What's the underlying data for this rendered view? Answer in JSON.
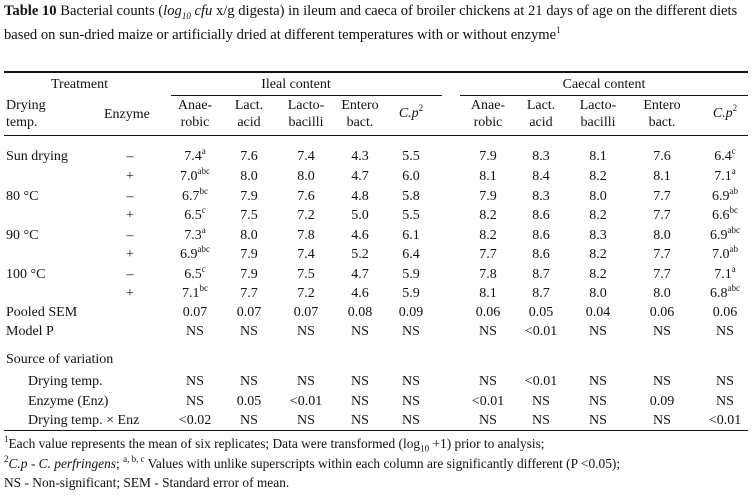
{
  "caption": {
    "label": "Table 10",
    "text_before": " Bacterial counts (",
    "unit_log": "log",
    "unit_sub": "10",
    "unit_cfu": " cfu",
    "text_after": " x/g digesta) in ileum and caeca of broiler chickens at 21 days of age on the different diets based on sun-dried maize or artificially dried at different temperatures with or without enzyme",
    "footnote_mark": "1"
  },
  "headers": {
    "treatment": "Treatment",
    "ileal": "Ileal content",
    "caecal": "Caecal content",
    "drying_line1": "Drying",
    "drying_line2": "temp.",
    "enzyme": "Enzyme",
    "cols": [
      {
        "l1": "Anae-",
        "l2": "robic"
      },
      {
        "l1": "Lact.",
        "l2": "acid"
      },
      {
        "l1": "Lacto-",
        "l2": "bacilli"
      },
      {
        "l1": "Entero",
        "l2": "bact."
      },
      {
        "l1": "C.p",
        "sup": "2"
      }
    ]
  },
  "rows": [
    {
      "temp": "Sun drying",
      "enz": "–",
      "cells": [
        {
          "v": "7.4",
          "s": "a"
        },
        {
          "v": "7.6"
        },
        {
          "v": "7.4"
        },
        {
          "v": "4.3"
        },
        {
          "v": "5.5"
        },
        {
          "v": "7.9"
        },
        {
          "v": "8.3"
        },
        {
          "v": "8.1"
        },
        {
          "v": "7.6"
        },
        {
          "v": "6.4",
          "s": "c"
        }
      ]
    },
    {
      "temp": "",
      "enz": "+",
      "cells": [
        {
          "v": "7.0",
          "s": "abc"
        },
        {
          "v": "8.0"
        },
        {
          "v": "8.0"
        },
        {
          "v": "4.7"
        },
        {
          "v": "6.0"
        },
        {
          "v": "8.1"
        },
        {
          "v": "8.4"
        },
        {
          "v": "8.2"
        },
        {
          "v": "8.1"
        },
        {
          "v": "7.1",
          "s": "a"
        }
      ]
    },
    {
      "temp": "80 °C",
      "enz": "–",
      "cells": [
        {
          "v": "6.7",
          "s": "bc"
        },
        {
          "v": "7.9"
        },
        {
          "v": "7.6"
        },
        {
          "v": "4.8"
        },
        {
          "v": "5.8"
        },
        {
          "v": "7.9"
        },
        {
          "v": "8.3"
        },
        {
          "v": "8.0"
        },
        {
          "v": "7.7"
        },
        {
          "v": "6.9",
          "s": "ab"
        }
      ]
    },
    {
      "temp": "",
      "enz": "+",
      "cells": [
        {
          "v": "6.5",
          "s": "c"
        },
        {
          "v": "7.5"
        },
        {
          "v": "7.2"
        },
        {
          "v": "5.0"
        },
        {
          "v": "5.5"
        },
        {
          "v": "8.2"
        },
        {
          "v": "8.6"
        },
        {
          "v": "8.2"
        },
        {
          "v": "7.7"
        },
        {
          "v": "6.6",
          "s": "bc"
        }
      ]
    },
    {
      "temp": "90 °C",
      "enz": "–",
      "cells": [
        {
          "v": "7.3",
          "s": "a"
        },
        {
          "v": "8.0"
        },
        {
          "v": "7.8"
        },
        {
          "v": "4.6"
        },
        {
          "v": "6.1"
        },
        {
          "v": "8.2"
        },
        {
          "v": "8.6"
        },
        {
          "v": "8.3"
        },
        {
          "v": "8.0"
        },
        {
          "v": "6.9",
          "s": "abc"
        }
      ]
    },
    {
      "temp": "",
      "enz": "+",
      "cells": [
        {
          "v": "6.9",
          "s": "abc"
        },
        {
          "v": "7.9"
        },
        {
          "v": "7.4"
        },
        {
          "v": "5.2"
        },
        {
          "v": "6.4"
        },
        {
          "v": "7.7"
        },
        {
          "v": "8.6"
        },
        {
          "v": "8.2"
        },
        {
          "v": "7.7"
        },
        {
          "v": "7.0",
          "s": "ab"
        }
      ]
    },
    {
      "temp": "100 °C",
      "enz": "–",
      "cells": [
        {
          "v": "6.5",
          "s": "c"
        },
        {
          "v": "7.9"
        },
        {
          "v": "7.5"
        },
        {
          "v": "4.7"
        },
        {
          "v": "5.9"
        },
        {
          "v": "7.8"
        },
        {
          "v": "8.7"
        },
        {
          "v": "8.2"
        },
        {
          "v": "7.7"
        },
        {
          "v": "7.1",
          "s": "a"
        }
      ]
    },
    {
      "temp": "",
      "enz": "+",
      "cells": [
        {
          "v": "7.1",
          "s": "bc"
        },
        {
          "v": "7.7"
        },
        {
          "v": "7.2"
        },
        {
          "v": "4.6"
        },
        {
          "v": "5.9"
        },
        {
          "v": "8.1"
        },
        {
          "v": "8.7"
        },
        {
          "v": "8.0"
        },
        {
          "v": "8.0"
        },
        {
          "v": "6.8",
          "s": "abc"
        }
      ]
    },
    {
      "temp": "Pooled SEM",
      "enz": "",
      "cells": [
        {
          "v": "0.07"
        },
        {
          "v": "0.07"
        },
        {
          "v": "0.07"
        },
        {
          "v": "0.08"
        },
        {
          "v": "0.09"
        },
        {
          "v": "0.06"
        },
        {
          "v": "0.05"
        },
        {
          "v": "0.04"
        },
        {
          "v": "0.06"
        },
        {
          "v": "0.06"
        }
      ]
    },
    {
      "temp": "Model P",
      "enz": "",
      "cells": [
        {
          "v": "NS"
        },
        {
          "v": "NS"
        },
        {
          "v": "NS"
        },
        {
          "v": "NS"
        },
        {
          "v": "NS"
        },
        {
          "v": "NS"
        },
        {
          "v": "<0.01"
        },
        {
          "v": "NS"
        },
        {
          "v": "NS"
        },
        {
          "v": "NS"
        }
      ]
    }
  ],
  "source_heading": "Source of variation",
  "source_rows": [
    {
      "label": "Drying temp.",
      "cells": [
        "NS",
        "NS",
        "NS",
        "NS",
        "NS",
        "NS",
        "<0.01",
        "NS",
        "NS",
        "NS"
      ]
    },
    {
      "label": "Enzyme (Enz)",
      "cells": [
        "NS",
        "0.05",
        "<0.01",
        "NS",
        "NS",
        "<0.01",
        "NS",
        "NS",
        "0.09",
        "NS"
      ]
    },
    {
      "label": "Drying temp. × Enz",
      "cells": [
        "<0.02",
        "NS",
        "NS",
        "NS",
        "NS",
        "NS",
        "NS",
        "NS",
        "NS",
        "<0.01"
      ]
    }
  ],
  "footnotes": {
    "f1_mark": "1",
    "f1_text": "Each value represents the mean of six replicates; Data were transformed (log",
    "f1_sub": "10",
    "f1_end": " +1) prior to analysis;",
    "f2_mark": "2",
    "f2_cp": "C.p - C. perfringens",
    "f2_sep": "; ",
    "f2_sup": "a, b, c",
    "f2_text": " Values with unlike superscripts within each column are significantly different (P <0.05);",
    "f3": "NS - Non-significant; SEM - Standard error of mean."
  }
}
